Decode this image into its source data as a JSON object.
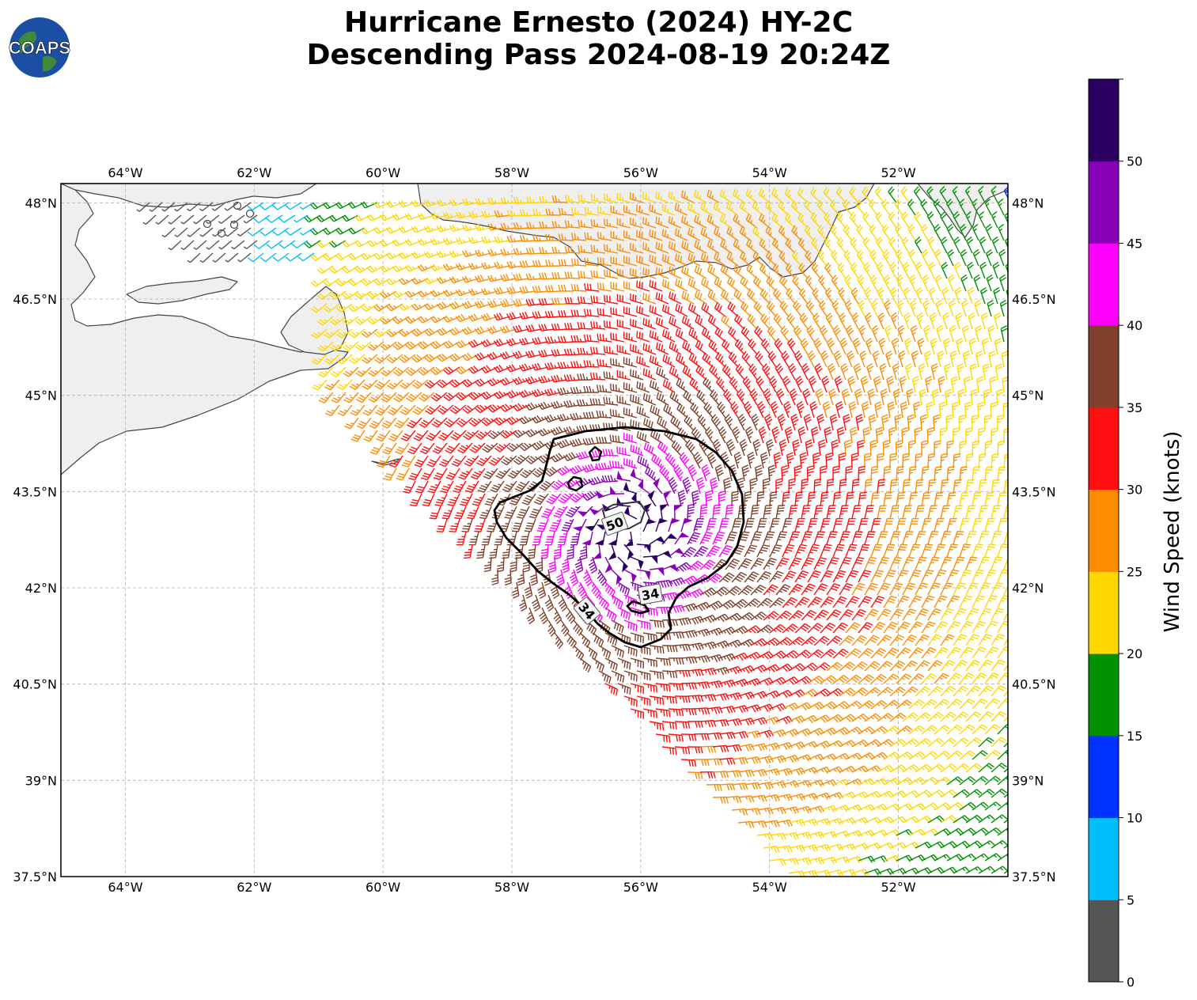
{
  "logo": {
    "text": "COAPS"
  },
  "title": {
    "line1": "Hurricane Ernesto (2024) HY-2C",
    "line2": "Descending Pass 2024-08-19 20:24Z"
  },
  "map": {
    "lon_range": [
      -65.0,
      -50.3
    ],
    "lat_range": [
      37.5,
      48.3
    ],
    "lon_ticks": [
      "64°W",
      "62°W",
      "60°W",
      "58°W",
      "56°W",
      "54°W",
      "52°W"
    ],
    "lat_ticks": [
      "48°N",
      "46.5°N",
      "45°N",
      "43.5°N",
      "42°N",
      "40.5°N",
      "39°N",
      "37.5°N"
    ],
    "storm_center": {
      "lon": -56.1,
      "lat": 42.9
    },
    "contour_labels": [
      "50",
      "34",
      "34"
    ]
  },
  "colorbar": {
    "label": "Wind Speed (knots)",
    "tick_labels": [
      "0",
      "5",
      "10",
      "15",
      "20",
      "25",
      "30",
      "35",
      "40",
      "45",
      "50"
    ],
    "bins": [
      {
        "min": 0,
        "max": 5,
        "color": "#555555"
      },
      {
        "min": 5,
        "max": 10,
        "color": "#00bfff"
      },
      {
        "min": 10,
        "max": 15,
        "color": "#0033ff"
      },
      {
        "min": 15,
        "max": 20,
        "color": "#009100"
      },
      {
        "min": 20,
        "max": 25,
        "color": "#ffd700"
      },
      {
        "min": 25,
        "max": 30,
        "color": "#ff8c00"
      },
      {
        "min": 30,
        "max": 35,
        "color": "#ff0f0f"
      },
      {
        "min": 35,
        "max": 40,
        "color": "#80402b"
      },
      {
        "min": 40,
        "max": 45,
        "color": "#ff00ff"
      },
      {
        "min": 45,
        "max": 50,
        "color": "#8800b8"
      },
      {
        "min": 50,
        "max": 55,
        "color": "#2b0060"
      }
    ]
  }
}
